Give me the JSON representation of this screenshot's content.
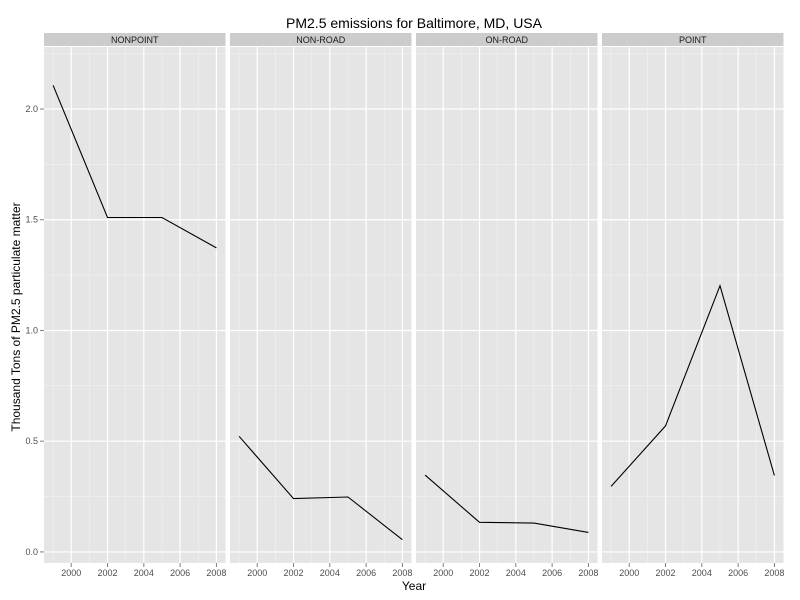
{
  "chart_data": {
    "type": "line",
    "title": "PM2.5 emissions for Baltimore, MD, USA",
    "xlabel": "Year",
    "ylabel": "Thousand Tons of PM2.5 particulate matter",
    "x": [
      1999,
      2002,
      2005,
      2008
    ],
    "xlim": [
      1998.5,
      2008.5
    ],
    "ylim": [
      -0.05,
      2.28
    ],
    "x_ticks": [
      2000,
      2002,
      2004,
      2006,
      2008
    ],
    "y_ticks": [
      0.0,
      0.5,
      1.0,
      1.5,
      2.0
    ],
    "y_tick_labels": [
      "0.0",
      "0.5",
      "1.0",
      "1.5",
      "2.0"
    ],
    "grid": true,
    "facets": [
      {
        "name": "NONPOINT",
        "values": [
          2.107,
          1.51,
          1.51,
          1.373
        ]
      },
      {
        "name": "NON-ROAD",
        "values": [
          0.522,
          0.241,
          0.248,
          0.055
        ]
      },
      {
        "name": "ON-ROAD",
        "values": [
          0.347,
          0.134,
          0.13,
          0.088
        ]
      },
      {
        "name": "POINT",
        "values": [
          0.296,
          0.569,
          1.202,
          0.345
        ]
      }
    ],
    "colors": {
      "panel_bg": "#e5e5e5",
      "strip_bg": "#cccccc",
      "grid_major": "#ffffff",
      "grid_minor": "#f2f2f2",
      "line": "#000000"
    }
  }
}
